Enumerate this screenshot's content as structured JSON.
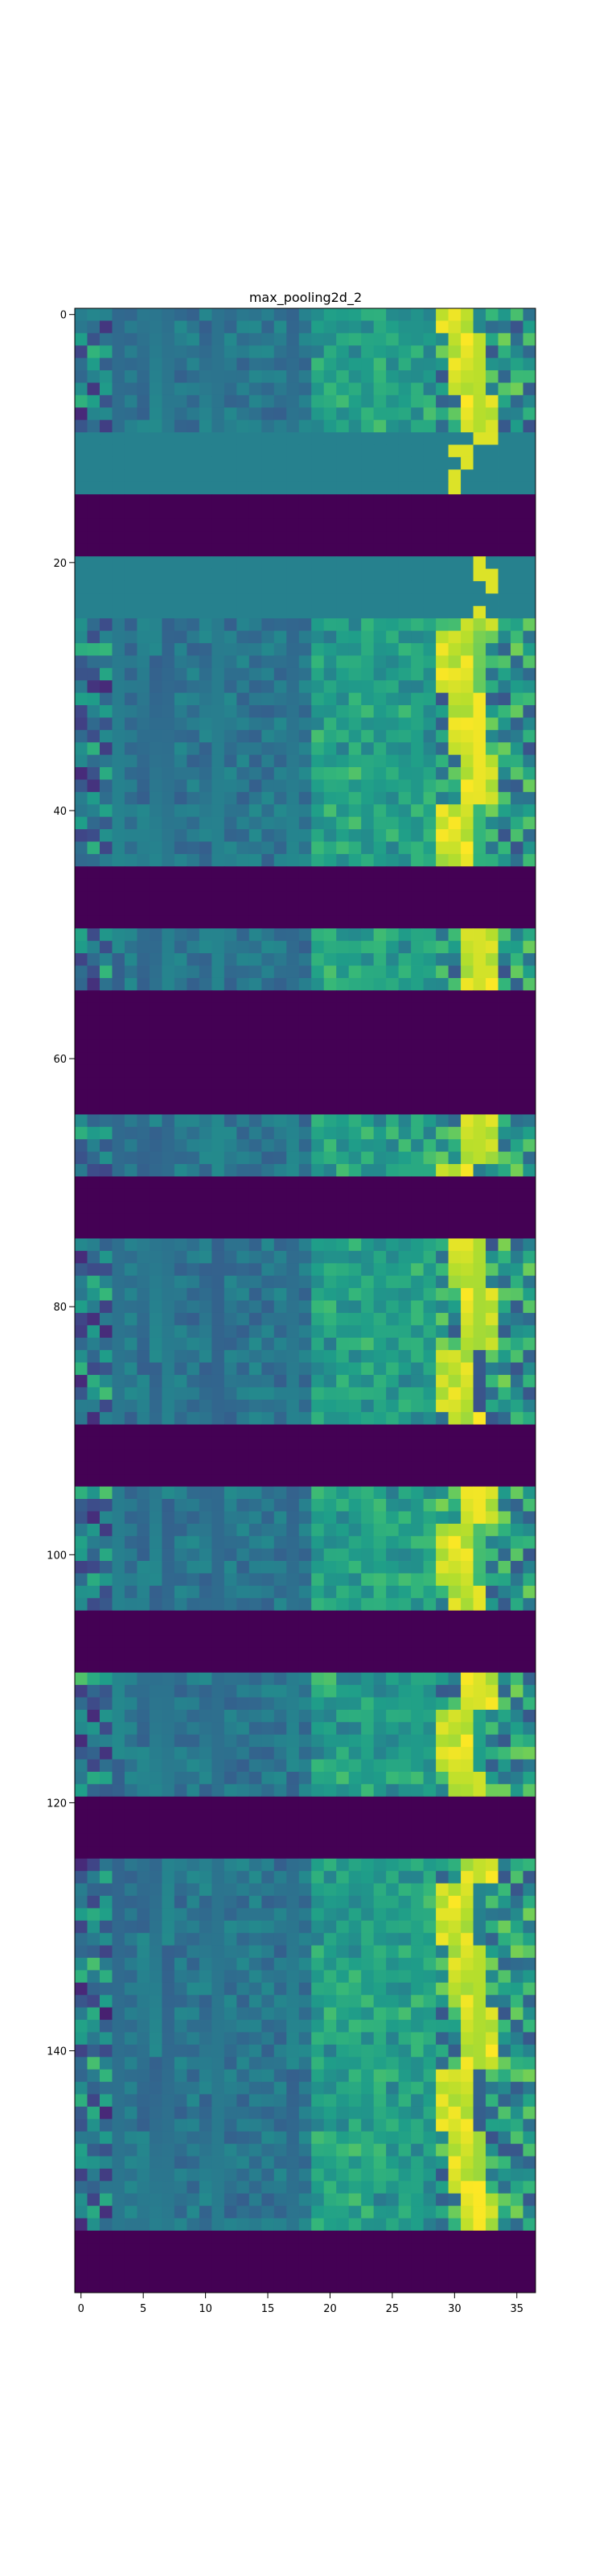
{
  "chart_data": {
    "type": "heatmap",
    "title": "max_pooling2d_2",
    "colormap": "viridis",
    "columns": 37,
    "rows": 160,
    "xlim": [
      -0.5,
      36.5
    ],
    "ylim": [
      159.5,
      -0.5
    ],
    "x_ticks": [
      0,
      5,
      10,
      15,
      20,
      25,
      30,
      35
    ],
    "y_ticks": [
      0,
      20,
      40,
      60,
      80,
      100,
      120,
      140
    ],
    "grid": false,
    "value_range": [
      0,
      1
    ],
    "blocks": [
      {
        "rows": [
          0,
          9
        ],
        "pattern": "textured"
      },
      {
        "rows": [
          10,
          14
        ],
        "pattern": "flat-teal"
      },
      {
        "rows": [
          15,
          19
        ],
        "pattern": "dark"
      },
      {
        "rows": [
          20,
          24
        ],
        "pattern": "flat-teal"
      },
      {
        "rows": [
          25,
          44
        ],
        "pattern": "textured"
      },
      {
        "rows": [
          45,
          49
        ],
        "pattern": "dark"
      },
      {
        "rows": [
          50,
          54
        ],
        "pattern": "textured"
      },
      {
        "rows": [
          55,
          64
        ],
        "pattern": "dark"
      },
      {
        "rows": [
          65,
          69
        ],
        "pattern": "textured"
      },
      {
        "rows": [
          70,
          74
        ],
        "pattern": "dark"
      },
      {
        "rows": [
          75,
          89
        ],
        "pattern": "textured"
      },
      {
        "rows": [
          90,
          94
        ],
        "pattern": "dark"
      },
      {
        "rows": [
          95,
          104
        ],
        "pattern": "textured"
      },
      {
        "rows": [
          105,
          109
        ],
        "pattern": "dark"
      },
      {
        "rows": [
          110,
          119
        ],
        "pattern": "textured"
      },
      {
        "rows": [
          120,
          124
        ],
        "pattern": "dark"
      },
      {
        "rows": [
          125,
          154
        ],
        "pattern": "textured"
      },
      {
        "rows": [
          155,
          159
        ],
        "pattern": "dark"
      }
    ]
  }
}
